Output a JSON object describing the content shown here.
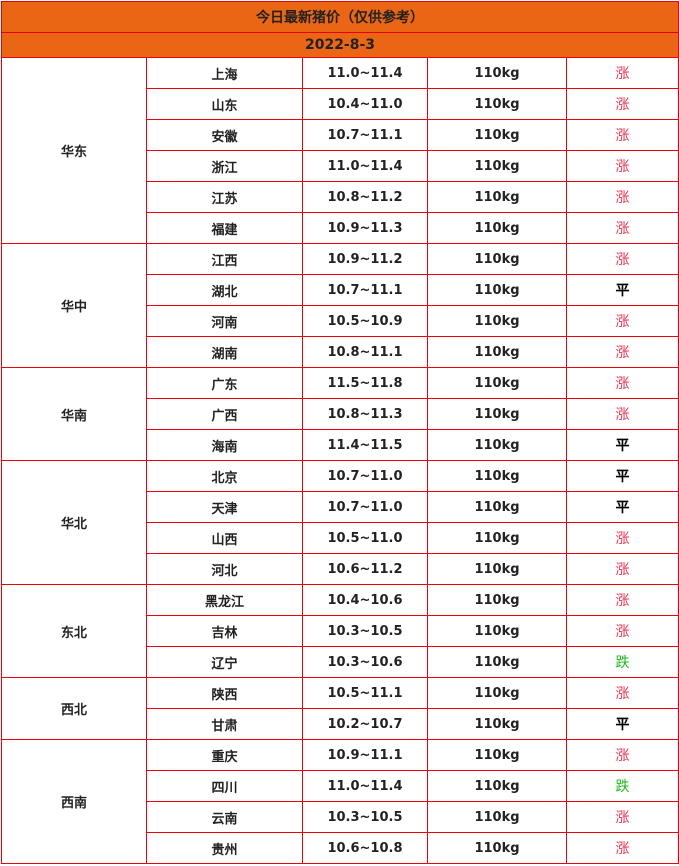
{
  "title": "今日最新猪价（仅供参考）",
  "date": "2022-8-3",
  "colors": {
    "header_bg": "#ea6514",
    "border": "#e8000b",
    "up": "#f0324f",
    "down": "#1bb81b",
    "flat": "#000000"
  },
  "regions": [
    {
      "name": "华东",
      "rows": [
        [
          "上海",
          "11.0~11.4",
          "110kg",
          "涨"
        ],
        [
          "山东",
          "10.4~11.0",
          "110kg",
          "涨"
        ],
        [
          "安徽",
          "10.7~11.1",
          "110kg",
          "涨"
        ],
        [
          "浙江",
          "11.0~11.4",
          "110kg",
          "涨"
        ],
        [
          "江苏",
          "10.8~11.2",
          "110kg",
          "涨"
        ],
        [
          "福建",
          "10.9~11.3",
          "110kg",
          "涨"
        ]
      ]
    },
    {
      "name": "华中",
      "rows": [
        [
          "江西",
          "10.9~11.2",
          "110kg",
          "涨"
        ],
        [
          "湖北",
          "10.7~11.1",
          "110kg",
          "平"
        ],
        [
          "河南",
          "10.5~10.9",
          "110kg",
          "涨"
        ],
        [
          "湖南",
          "10.8~11.1",
          "110kg",
          "涨"
        ]
      ]
    },
    {
      "name": "华南",
      "rows": [
        [
          "广东",
          "11.5~11.8",
          "110kg",
          "涨"
        ],
        [
          "广西",
          "10.8~11.3",
          "110kg",
          "涨"
        ],
        [
          "海南",
          "11.4~11.5",
          "110kg",
          "平"
        ]
      ]
    },
    {
      "name": "华北",
      "rows": [
        [
          "北京",
          "10.7~11.0",
          "110kg",
          "平"
        ],
        [
          "天津",
          "10.7~11.0",
          "110kg",
          "平"
        ],
        [
          "山西",
          "10.5~11.0",
          "110kg",
          "涨"
        ],
        [
          "河北",
          "10.6~11.2",
          "110kg",
          "涨"
        ]
      ]
    },
    {
      "name": "东北",
      "rows": [
        [
          "黑龙江",
          "10.4~10.6",
          "110kg",
          "涨"
        ],
        [
          "吉林",
          "10.3~10.5",
          "110kg",
          "涨"
        ],
        [
          "辽宁",
          "10.3~10.6",
          "110kg",
          "跌"
        ]
      ]
    },
    {
      "name": "西北",
      "rows": [
        [
          "陕西",
          "10.5~11.1",
          "110kg",
          "涨"
        ],
        [
          "甘肃",
          "10.2~10.7",
          "110kg",
          "平"
        ]
      ]
    },
    {
      "name": "西南",
      "rows": [
        [
          "重庆",
          "10.9~11.1",
          "110kg",
          "涨"
        ],
        [
          "四川",
          "11.0~11.4",
          "110kg",
          "跌"
        ],
        [
          "云南",
          "10.3~10.5",
          "110kg",
          "涨"
        ],
        [
          "贵州",
          "10.6~10.8",
          "110kg",
          "涨"
        ]
      ]
    }
  ]
}
